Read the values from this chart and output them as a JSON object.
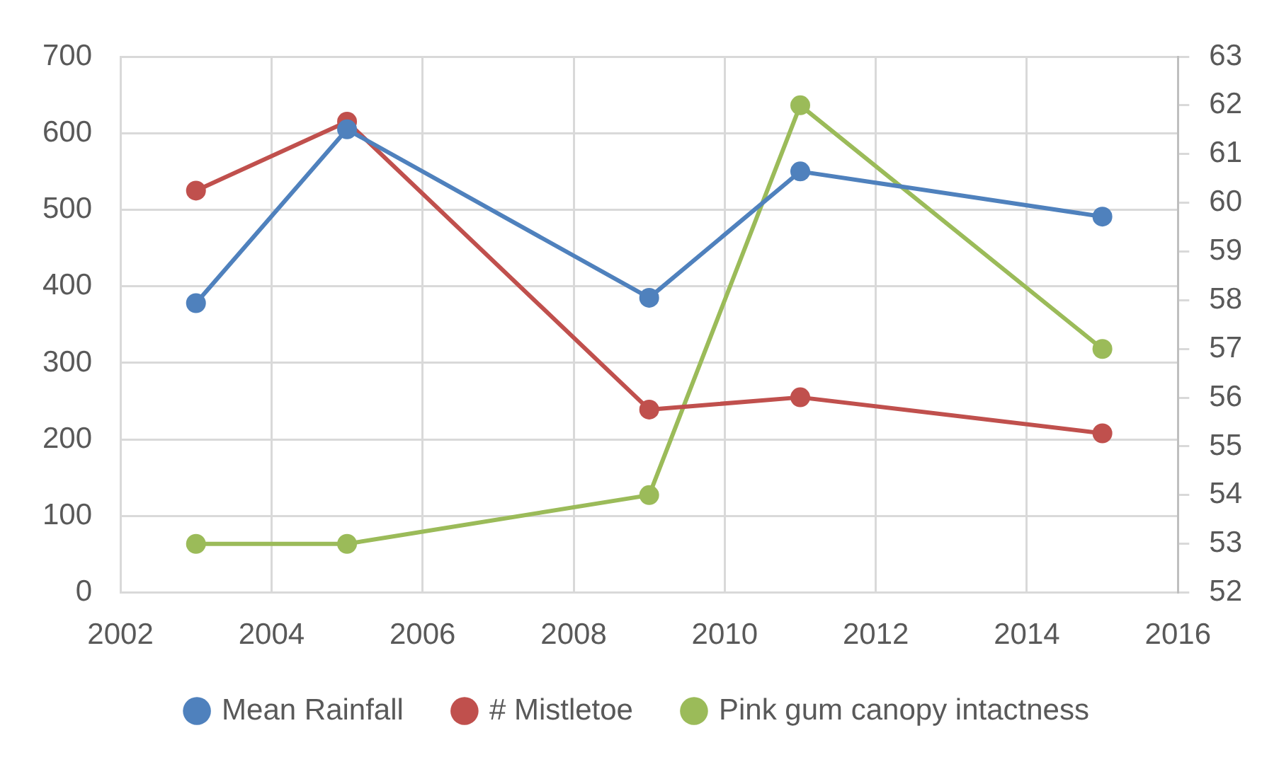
{
  "chart_data": {
    "type": "line",
    "x": [
      2003,
      2005,
      2009,
      2011,
      2015
    ],
    "series": [
      {
        "name": "Mean Rainfall",
        "color": "#4f81bd",
        "values": [
          378,
          605,
          385,
          550,
          491
        ]
      },
      {
        "name": "# Mistletoe",
        "color": "#c0504d",
        "values": [
          525,
          615,
          239,
          255,
          208
        ]
      },
      {
        "name": "Pink gum canopy intactness",
        "color": "#9bbb59",
        "values": [
          53,
          53,
          54,
          62,
          57
        ],
        "axis": "y2"
      }
    ],
    "xlim": [
      2002,
      2016
    ],
    "xticks": [
      2002,
      2004,
      2006,
      2008,
      2010,
      2012,
      2014,
      2016
    ],
    "ylim": [
      0,
      700
    ],
    "yticks": [
      0,
      100,
      200,
      300,
      400,
      500,
      600,
      700
    ],
    "y2lim": [
      52,
      63
    ],
    "y2ticks": [
      52,
      53,
      54,
      55,
      56,
      57,
      58,
      59,
      60,
      61,
      62,
      63
    ],
    "grid": true,
    "legend": "bottom",
    "marker": "circle",
    "line_style": "solid"
  }
}
